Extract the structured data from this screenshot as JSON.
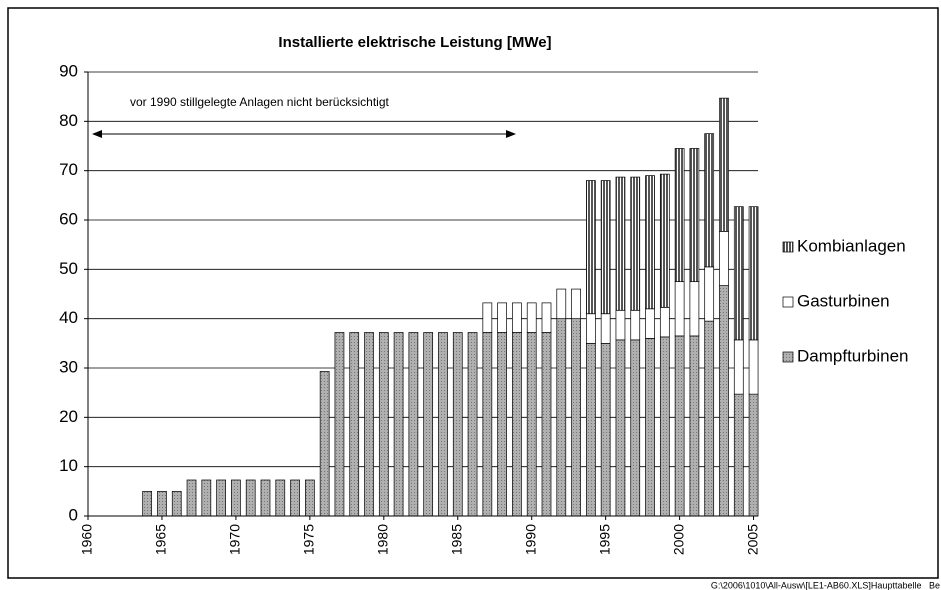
{
  "chart_data": {
    "type": "stacked_bar",
    "title": "Installierte elektrische Leistung  [MWe]",
    "annotation": "vor 1990 stillgelegte Anlagen nicht berücksichtigt",
    "footer": "G:\\2006\\1010\\All-Ausw\\[LE1-AB60.XLS]Haupttabelle_ Be",
    "x": [
      1960,
      1961,
      1962,
      1963,
      1964,
      1965,
      1966,
      1967,
      1968,
      1969,
      1970,
      1971,
      1972,
      1973,
      1974,
      1975,
      1976,
      1977,
      1978,
      1979,
      1980,
      1981,
      1982,
      1983,
      1984,
      1985,
      1986,
      1987,
      1988,
      1989,
      1990,
      1991,
      1992,
      1993,
      1994,
      1995,
      1996,
      1997,
      1998,
      1999,
      2000,
      2001,
      2002,
      2003,
      2004,
      2005
    ],
    "xlim": [
      1960,
      2005.3
    ],
    "xticks": [
      1960,
      1965,
      1970,
      1975,
      1980,
      1985,
      1990,
      1995,
      2000,
      2005
    ],
    "ylim": [
      0,
      90
    ],
    "yticks": [
      0,
      10,
      20,
      30,
      40,
      50,
      60,
      70,
      80,
      90
    ],
    "grid": true,
    "legend": "right",
    "series": [
      {
        "name": "Dampfturbinen",
        "color": "#b0b0b0",
        "values": [
          0,
          0,
          0,
          0,
          5,
          5,
          5,
          7.3,
          7.3,
          7.3,
          7.3,
          7.3,
          7.3,
          7.3,
          7.3,
          7.3,
          29.3,
          37.2,
          37.2,
          37.2,
          37.2,
          37.2,
          37.2,
          37.2,
          37.2,
          37.2,
          37.2,
          37.2,
          37.2,
          37.2,
          37.2,
          37.2,
          40,
          40,
          35,
          35,
          35.7,
          35.7,
          36,
          36.3,
          36.5,
          36.5,
          39.5,
          46.7,
          24.7,
          24.7
        ]
      },
      {
        "name": "Gasturbinen",
        "color": "#ffffff",
        "values": [
          0,
          0,
          0,
          0,
          0,
          0,
          0,
          0,
          0,
          0,
          0,
          0,
          0,
          0,
          0,
          0,
          0,
          0,
          0,
          0,
          0,
          0,
          0,
          0,
          0,
          0,
          0,
          6,
          6,
          6,
          6,
          6,
          6,
          6,
          6,
          6,
          6,
          6,
          6,
          6,
          11,
          11,
          11,
          11,
          11,
          11
        ]
      },
      {
        "name": "Kombianlagen",
        "color": "#555555",
        "values": [
          0,
          0,
          0,
          0,
          0,
          0,
          0,
          0,
          0,
          0,
          0,
          0,
          0,
          0,
          0,
          0,
          0,
          0,
          0,
          0,
          0,
          0,
          0,
          0,
          0,
          0,
          0,
          0,
          0,
          0,
          0,
          0,
          0,
          0,
          27,
          27,
          27,
          27,
          27,
          27,
          27,
          27,
          27,
          27,
          27,
          27
        ]
      }
    ]
  }
}
